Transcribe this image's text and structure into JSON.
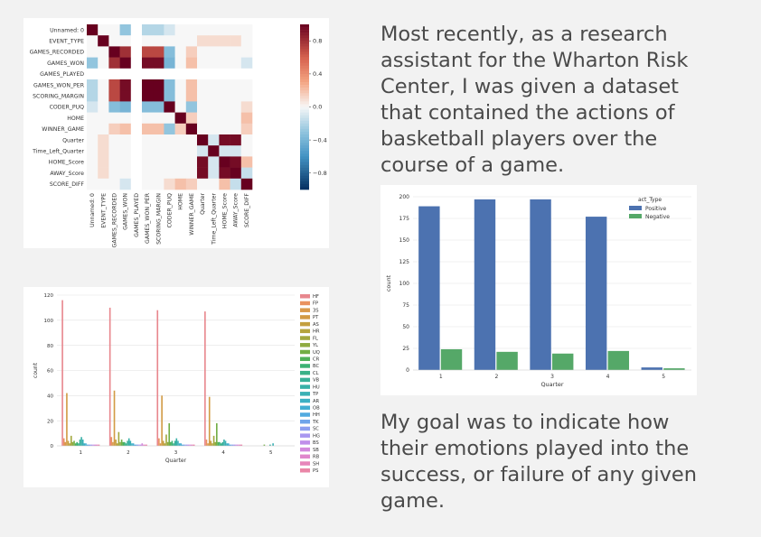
{
  "paragraph1": [
    "Most recently, as a research",
    "assistant for the Wharton Risk",
    "Center, I was given a dataset",
    "that contained the actions of",
    "basketball players over the",
    "course of a game."
  ],
  "paragraph2": [
    "My goal was to indicate how",
    "their emotions played into the",
    "success, or failure of any given",
    "game."
  ],
  "chart_data": [
    {
      "type": "heatmap",
      "labels": [
        "Unnamed: 0",
        "EVENT_TYPE",
        "GAMES_RECORDED",
        "GAMES_WON",
        "GAMES_PLAYED",
        "GAMES_WON_PER",
        "SCORING_MARGIN",
        "CODER_PUQ",
        "HOME",
        "WINNER_GAME",
        "Quarter",
        "Time_Left_Quarter",
        "HOME_Score",
        "AWAY_Score",
        "SCORE_DIFF"
      ],
      "colorbar_ticks": [
        "0.8",
        "0.4",
        "0.0",
        "−0.4",
        "−0.8"
      ],
      "range": [
        -1,
        1
      ],
      "colormap": "RdBu_r",
      "matrix": [
        [
          1,
          0,
          0,
          -0.3,
          null,
          -0.2,
          -0.2,
          -0.1,
          0,
          0,
          0,
          0,
          0,
          0,
          0
        ],
        [
          0,
          1,
          0,
          0,
          null,
          0,
          0,
          0,
          0,
          0,
          0.1,
          0.1,
          0.1,
          0.1,
          0
        ],
        [
          0,
          0,
          1,
          0.8,
          null,
          0.7,
          0.7,
          -0.35,
          0,
          0.15,
          0,
          0,
          0,
          0,
          0
        ],
        [
          -0.3,
          0,
          0.8,
          1,
          null,
          0.95,
          0.95,
          -0.4,
          0,
          0.2,
          0,
          0,
          0,
          0,
          -0.1
        ],
        [
          null,
          null,
          null,
          null,
          null,
          null,
          null,
          null,
          null,
          null,
          null,
          null,
          null,
          null,
          null
        ],
        [
          -0.2,
          0,
          0.7,
          0.95,
          null,
          1,
          1,
          -0.35,
          0,
          0.2,
          0,
          0,
          0,
          0,
          0
        ],
        [
          -0.2,
          0,
          0.7,
          0.95,
          null,
          1,
          1,
          -0.35,
          0,
          0.2,
          0,
          0,
          0,
          0,
          0
        ],
        [
          -0.1,
          0,
          -0.35,
          -0.4,
          null,
          -0.35,
          -0.35,
          1,
          0,
          -0.3,
          0,
          0,
          0,
          0,
          0.1
        ],
        [
          0,
          0,
          0,
          0,
          null,
          0,
          0,
          0,
          1,
          0.15,
          0,
          0,
          0,
          0,
          0.2
        ],
        [
          0,
          0,
          0.15,
          0.2,
          null,
          0.2,
          0.2,
          -0.3,
          0.15,
          1,
          0,
          0,
          0,
          0,
          0.15
        ],
        [
          0,
          0.1,
          0,
          0,
          null,
          0,
          0,
          0,
          0,
          0,
          1,
          -0.1,
          0.95,
          0.95,
          0
        ],
        [
          0,
          0.1,
          0,
          0,
          null,
          0,
          0,
          0,
          0,
          0,
          -0.1,
          1,
          -0.1,
          -0.1,
          0
        ],
        [
          0,
          0.1,
          0,
          0,
          null,
          0,
          0,
          0,
          0,
          0,
          0.95,
          -0.1,
          1,
          0.95,
          0.2
        ],
        [
          0,
          0.1,
          0,
          0,
          null,
          0,
          0,
          0,
          0,
          0,
          0.95,
          -0.1,
          0.95,
          1,
          -0.15
        ],
        [
          0,
          0,
          0,
          -0.1,
          null,
          0,
          0,
          0.1,
          0.2,
          0.15,
          0,
          0,
          0.2,
          -0.15,
          1
        ]
      ]
    },
    {
      "type": "bar",
      "categories": [
        "1",
        "2",
        "3",
        "4",
        "5"
      ],
      "xlabel": "Quarter",
      "ylabel": "count",
      "ylim": [
        0,
        120
      ],
      "yticks": [
        0,
        20,
        40,
        60,
        80,
        100,
        120
      ],
      "legend_position": "right",
      "series": [
        {
          "name": "HF",
          "color": "#e8878e",
          "values": [
            116,
            110,
            108,
            107,
            0
          ]
        },
        {
          "name": "FP",
          "color": "#e9925f",
          "values": [
            6,
            7,
            6,
            5,
            0
          ]
        },
        {
          "name": "3S",
          "color": "#d99a4c",
          "values": [
            3,
            3,
            2,
            2,
            0
          ]
        },
        {
          "name": "PT",
          "color": "#d29b45",
          "values": [
            42,
            44,
            40,
            39,
            0
          ]
        },
        {
          "name": "AS",
          "color": "#c4a040",
          "values": [
            4,
            5,
            4,
            4,
            0
          ]
        },
        {
          "name": "HR",
          "color": "#b5a43d",
          "values": [
            2,
            2,
            2,
            2,
            0
          ]
        },
        {
          "name": "FL",
          "color": "#a3a83f",
          "values": [
            8,
            11,
            9,
            8,
            0
          ]
        },
        {
          "name": "YL",
          "color": "#8fab3f",
          "values": [
            3,
            3,
            3,
            3,
            0
          ]
        },
        {
          "name": "UQ",
          "color": "#72ae45",
          "values": [
            4,
            5,
            18,
            18,
            1
          ]
        },
        {
          "name": "CR",
          "color": "#4fb15a",
          "values": [
            2,
            3,
            3,
            3,
            0
          ]
        },
        {
          "name": "BC",
          "color": "#3cb274",
          "values": [
            3,
            3,
            4,
            3,
            0
          ]
        },
        {
          "name": "CL",
          "color": "#39b188",
          "values": [
            2,
            2,
            2,
            2,
            0
          ]
        },
        {
          "name": "VB",
          "color": "#38b098",
          "values": [
            5,
            4,
            4,
            3,
            1
          ]
        },
        {
          "name": "HU",
          "color": "#38b0a7",
          "values": [
            7,
            6,
            6,
            5,
            0
          ]
        },
        {
          "name": "TP",
          "color": "#3ab0b5",
          "values": [
            5,
            4,
            4,
            4,
            2
          ]
        },
        {
          "name": "AR",
          "color": "#3cb0c3",
          "values": [
            2,
            2,
            2,
            2,
            0
          ]
        },
        {
          "name": "OB",
          "color": "#42aed2",
          "values": [
            2,
            2,
            2,
            2,
            0
          ]
        },
        {
          "name": "HH",
          "color": "#52aae0",
          "values": [
            1,
            1,
            1,
            1,
            0
          ]
        },
        {
          "name": "TK",
          "color": "#6fa5ea",
          "values": [
            1,
            1,
            1,
            1,
            0
          ]
        },
        {
          "name": "SC",
          "color": "#8d9ff0",
          "values": [
            1,
            1,
            1,
            1,
            0
          ]
        },
        {
          "name": "HG",
          "color": "#a898f0",
          "values": [
            1,
            1,
            1,
            1,
            0
          ]
        },
        {
          "name": "BS",
          "color": "#c08fea",
          "values": [
            1,
            1,
            1,
            1,
            0
          ]
        },
        {
          "name": "SB",
          "color": "#d38add",
          "values": [
            1,
            2,
            1,
            1,
            0
          ]
        },
        {
          "name": "RB",
          "color": "#e086cd",
          "values": [
            1,
            1,
            1,
            1,
            0
          ]
        },
        {
          "name": "SH",
          "color": "#e786ba",
          "values": [
            1,
            1,
            1,
            1,
            0
          ]
        },
        {
          "name": "PS",
          "color": "#ea86a7",
          "values": [
            1,
            1,
            1,
            1,
            0
          ]
        }
      ]
    },
    {
      "type": "bar",
      "categories": [
        "1",
        "2",
        "3",
        "4",
        "5"
      ],
      "xlabel": "Quarter",
      "ylabel": "count",
      "ylim": [
        0,
        200
      ],
      "yticks": [
        0,
        25,
        50,
        75,
        100,
        125,
        150,
        175,
        200
      ],
      "legend_title": "act_Type",
      "legend_position": "top-right",
      "series": [
        {
          "name": "Positive",
          "color": "#4c72b0",
          "values": [
            189,
            197,
            197,
            177,
            3
          ]
        },
        {
          "name": "Negative",
          "color": "#55a868",
          "values": [
            24,
            21,
            19,
            22,
            2
          ]
        }
      ]
    }
  ]
}
